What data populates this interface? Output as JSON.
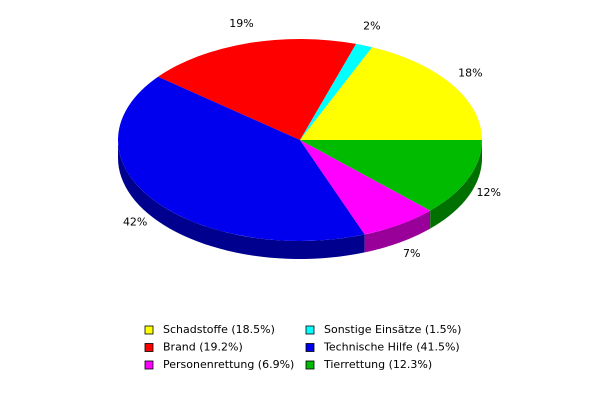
{
  "chart_data": {
    "type": "pie3d",
    "categories": [
      "Schadstoffe",
      "Sonstige Einsätze",
      "Brand",
      "Technische Hilfe",
      "Personenrettung",
      "Tierrettung"
    ],
    "legend_labels": [
      "Schadstoffe (18.5%)",
      "Sonstige Einsätze (1.5%)",
      "Brand (19.2%)",
      "Technische Hilfe (41.5%)",
      "Personenrettung (6.9%)",
      "Tierrettung (12.3%)"
    ],
    "values": [
      18.5,
      1.5,
      19.2,
      41.5,
      6.9,
      12.3
    ],
    "value_labels": [
      "18%",
      "2%",
      "19%",
      "42%",
      "7%",
      "12%"
    ],
    "colors": [
      "#ffff00",
      "#00ffff",
      "#ff0000",
      "#0000ee",
      "#ff00ff",
      "#00bb00"
    ]
  }
}
